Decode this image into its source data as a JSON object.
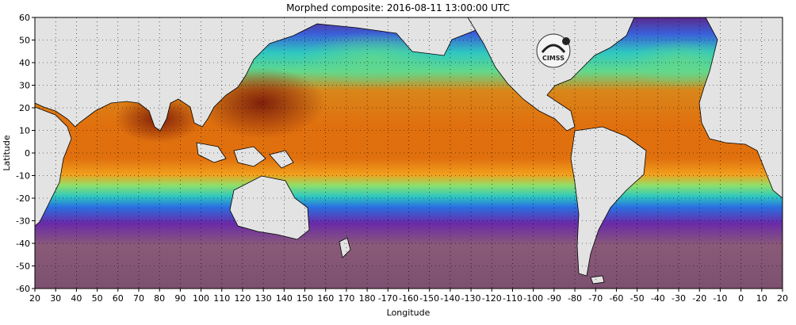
{
  "title": "Morphed composite: 2016-08-11 13:00:00 UTC",
  "logo_text": "CIMSS",
  "chart_data": {
    "type": "heatmap",
    "title": "Morphed composite: 2016-08-11 13:00:00 UTC",
    "xlabel": "Longitude",
    "ylabel": "Latitude",
    "x_tick_labels": [
      "20",
      "30",
      "40",
      "50",
      "60",
      "70",
      "80",
      "90",
      "100",
      "110",
      "120",
      "130",
      "140",
      "150",
      "160",
      "170",
      "180",
      "-170",
      "-160",
      "-150",
      "-140",
      "-130",
      "-120",
      "-110",
      "-100",
      "-90",
      "-80",
      "-70",
      "-60",
      "-50",
      "-40",
      "-30",
      "-20",
      "-10",
      "0",
      "10",
      "20"
    ],
    "y_tick_labels": [
      "60",
      "50",
      "40",
      "30",
      "20",
      "10",
      "0",
      "-10",
      "-20",
      "-30",
      "-40",
      "-50",
      "-60"
    ],
    "xlim": [
      20,
      380
    ],
    "ylim": [
      -60,
      60
    ],
    "grid": true,
    "grid_style": "dotted",
    "colors": {
      "land": "#e3e3e3",
      "very_high": "#7a1b0a",
      "high": "#e06a10",
      "mid_high": "#f3a21d",
      "mid": "#8ee06a",
      "low_mid": "#2fc8c0",
      "low": "#2a6fe0",
      "very_low": "#6a2aa8",
      "dry": "#8a5a78"
    }
  }
}
